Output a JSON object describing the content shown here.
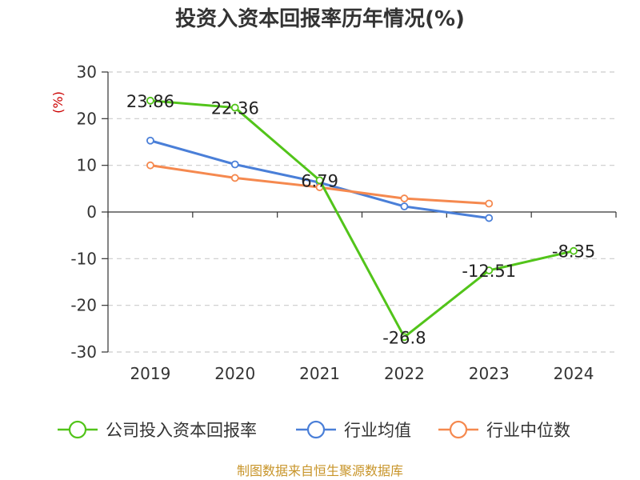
{
  "chart_data": {
    "type": "line",
    "title": "投资入资本回报率历年情况(%)",
    "ylabel": "(%)",
    "categories": [
      "2019",
      "2020",
      "2021",
      "2022",
      "2023",
      "2024"
    ],
    "ylim": [
      -30,
      30
    ],
    "yticks": [
      30,
      20,
      10,
      0,
      -10,
      -20,
      -30
    ],
    "grid": true,
    "legend_position": "bottom",
    "series": [
      {
        "name": "公司投入资本回报率",
        "color": "#52c41a",
        "values": [
          23.86,
          22.36,
          6.79,
          -26.8,
          -12.51,
          -8.35
        ],
        "labels": [
          "23.86",
          "22.36",
          "6.79",
          "-26.8",
          "-12.51",
          "-8.35"
        ]
      },
      {
        "name": "行业均值",
        "color": "#4a7fd8",
        "values": [
          15.3,
          10.2,
          6.3,
          1.2,
          -1.3,
          null
        ]
      },
      {
        "name": "行业中位数",
        "color": "#f5894f",
        "values": [
          10.0,
          7.3,
          5.3,
          2.9,
          1.8,
          null
        ]
      }
    ],
    "source": "制图数据来自恒生聚源数据库"
  }
}
